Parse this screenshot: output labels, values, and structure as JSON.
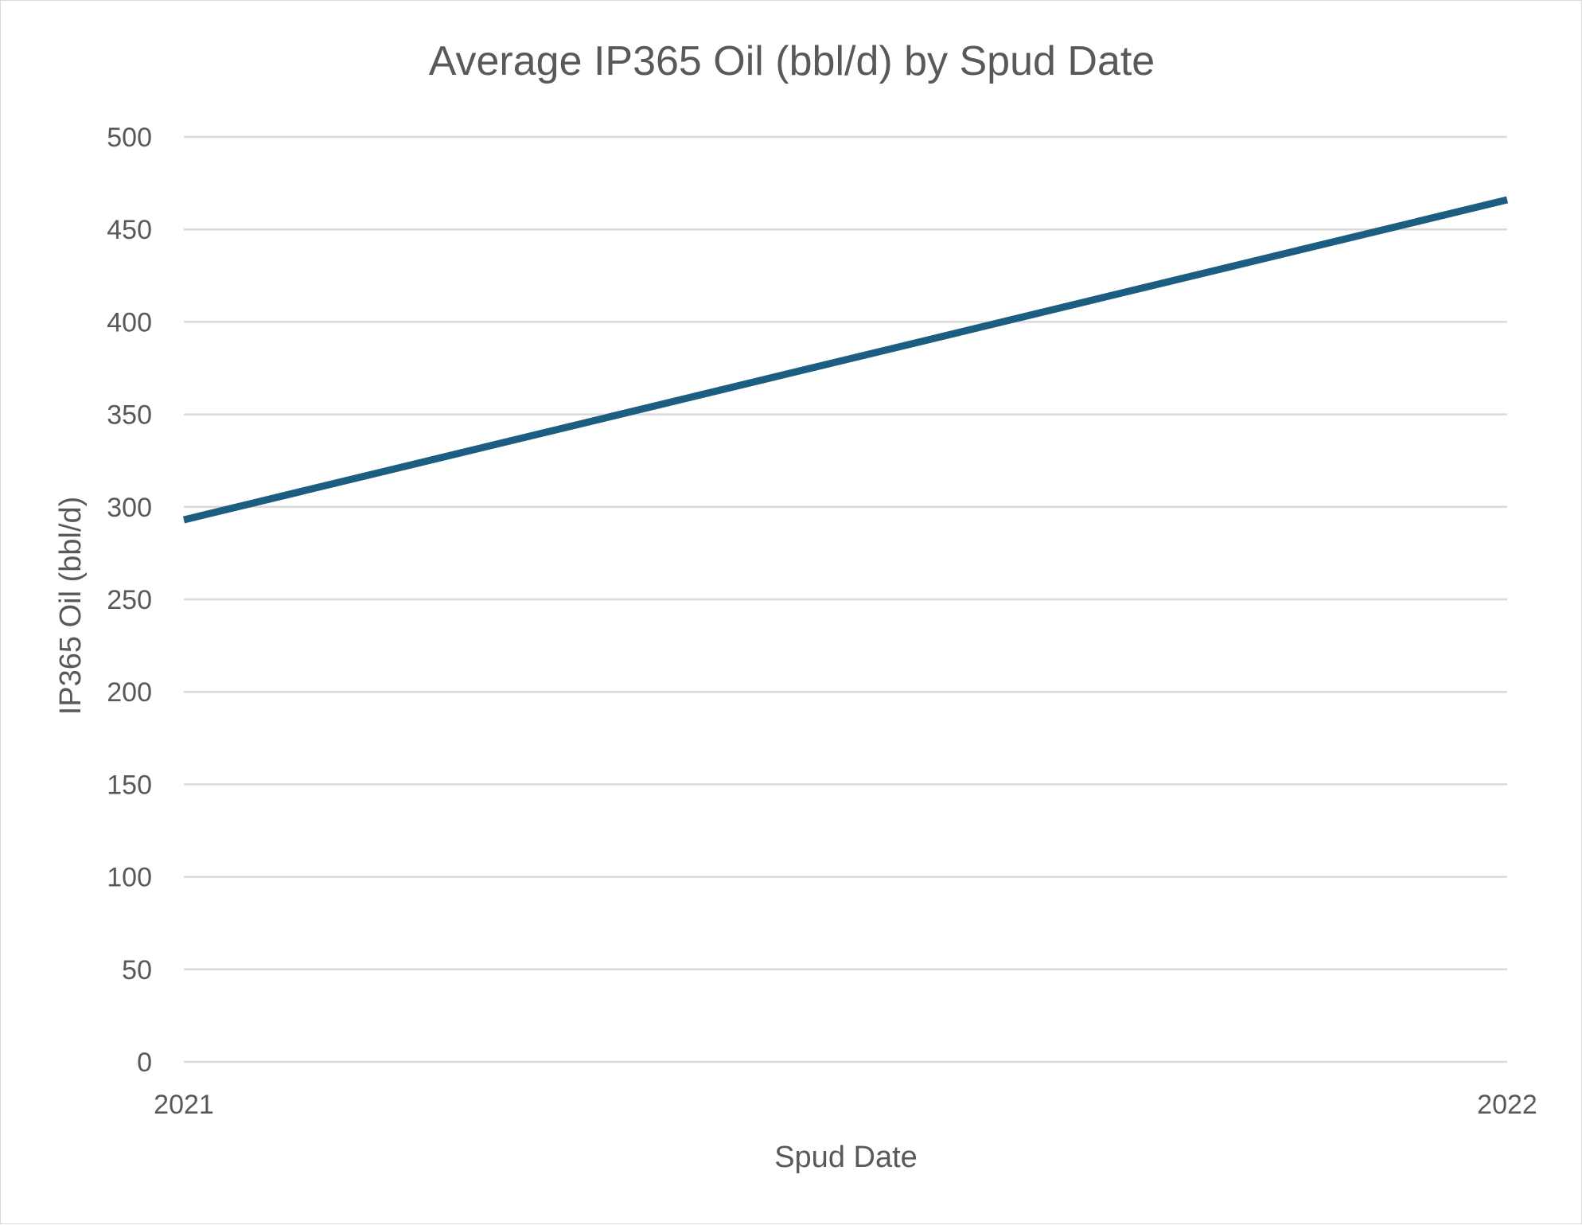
{
  "chart_data": {
    "type": "line",
    "title": "Average IP365 Oil (bbl/d) by Spud Date",
    "xlabel": "Spud Date",
    "ylabel": "IP365 Oil (bbl/d)",
    "x": [
      "2021",
      "2022"
    ],
    "series": [
      {
        "values": [
          293,
          466
        ]
      }
    ],
    "ylim": [
      0,
      500
    ],
    "yticks": [
      0,
      50,
      100,
      150,
      200,
      250,
      300,
      350,
      400,
      450,
      500
    ],
    "grid": true,
    "legend": "none",
    "colors": {
      "line": "#1b5e82",
      "grid": "#d9d9d9",
      "text": "#595959"
    }
  }
}
